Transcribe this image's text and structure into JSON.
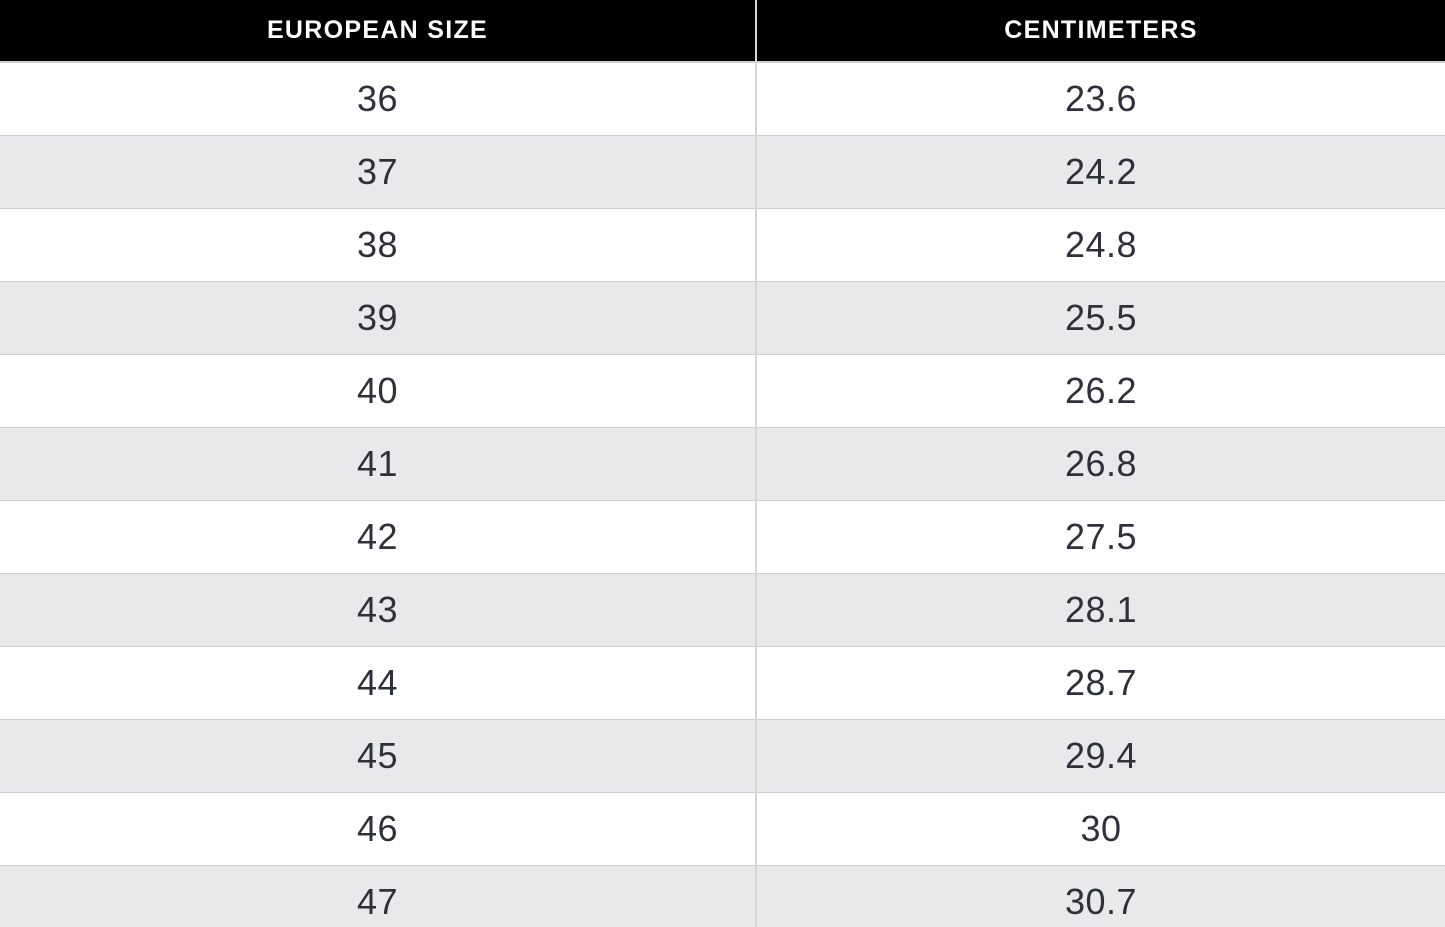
{
  "chart_data": {
    "type": "table",
    "columns": [
      "EUROPEAN SIZE",
      "CENTIMETERS"
    ],
    "rows": [
      {
        "european_size": "36",
        "centimeters": "23.6"
      },
      {
        "european_size": "37",
        "centimeters": "24.2"
      },
      {
        "european_size": "38",
        "centimeters": "24.8"
      },
      {
        "european_size": "39",
        "centimeters": "25.5"
      },
      {
        "european_size": "40",
        "centimeters": "26.2"
      },
      {
        "european_size": "41",
        "centimeters": "26.8"
      },
      {
        "european_size": "42",
        "centimeters": "27.5"
      },
      {
        "european_size": "43",
        "centimeters": "28.1"
      },
      {
        "european_size": "44",
        "centimeters": "28.7"
      },
      {
        "european_size": "45",
        "centimeters": "29.4"
      },
      {
        "european_size": "46",
        "centimeters": "30"
      },
      {
        "european_size": "47",
        "centimeters": "30.7"
      }
    ]
  },
  "colors": {
    "header_bg": "#000000",
    "header_text": "#ffffff",
    "row_bg": "#ffffff",
    "row_alt_bg": "#e9e9eb",
    "border": "#cfcfcf",
    "divider": "#d6d6d6",
    "cell_text": "#2e313a"
  }
}
